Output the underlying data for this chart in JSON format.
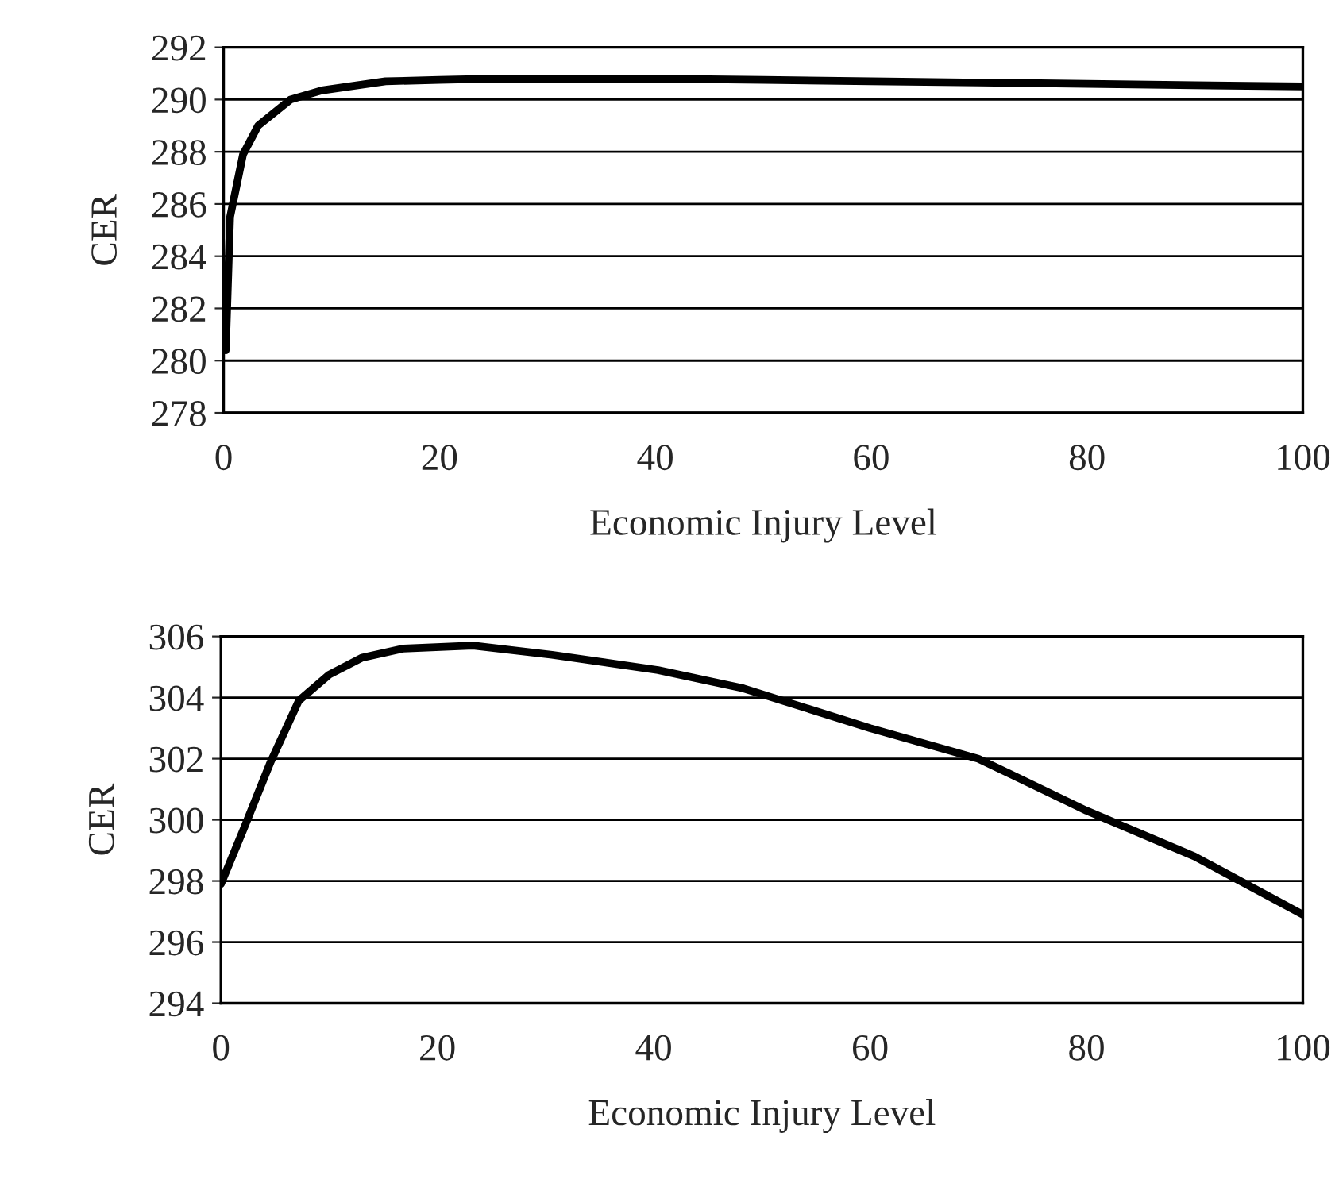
{
  "chart_data": [
    {
      "type": "line",
      "xlabel": "Economic Injury Level",
      "ylabel": "CER",
      "xlim": [
        0,
        100
      ],
      "xticks": [
        0,
        20,
        40,
        60,
        80,
        100
      ],
      "ylim": [
        278,
        292
      ],
      "yticks": [
        278,
        280,
        282,
        284,
        286,
        288,
        290,
        292
      ],
      "grid": "y",
      "legend": false,
      "marker": "none",
      "line_style": "solid",
      "series": [
        {
          "color": "#000000",
          "x": [
            0.2,
            0.6,
            1.8,
            3.2,
            6.2,
            9.1,
            15,
            20,
            25,
            30,
            40,
            50,
            60,
            70,
            80,
            90,
            100
          ],
          "values": [
            280.4,
            285.5,
            287.9,
            289,
            290,
            290.35,
            290.7,
            290.75,
            290.8,
            290.8,
            290.8,
            290.75,
            290.7,
            290.65,
            290.6,
            290.55,
            290.5
          ]
        }
      ]
    },
    {
      "type": "line",
      "xlabel": "Economic Injury Level",
      "ylabel": "CER",
      "xlim": [
        0,
        100
      ],
      "xticks": [
        0,
        20,
        40,
        60,
        80,
        100
      ],
      "ylim": [
        294,
        306
      ],
      "yticks": [
        294,
        296,
        298,
        300,
        302,
        304,
        306
      ],
      "grid": "y",
      "legend": false,
      "marker": "none",
      "line_style": "solid",
      "series": [
        {
          "color": "#000000",
          "x": [
            0,
            2.1,
            4.6,
            7.2,
            10,
            13,
            16.8,
            23.3,
            30.6,
            40.4,
            48.3,
            60,
            70,
            80,
            90,
            100
          ],
          "values": [
            297.9,
            299.7,
            301.9,
            303.9,
            304.75,
            305.3,
            305.6,
            305.7,
            305.4,
            304.9,
            304.3,
            303,
            302,
            300.3,
            298.8,
            296.9
          ]
        }
      ]
    }
  ]
}
